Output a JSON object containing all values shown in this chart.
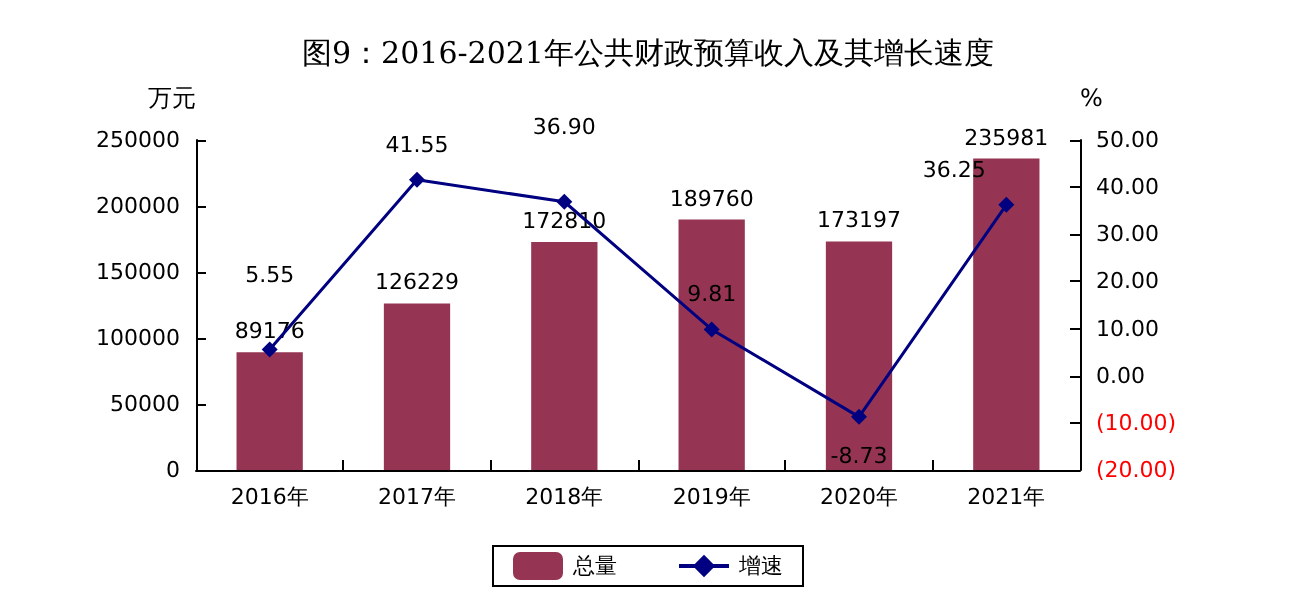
{
  "chart_data": {
    "type": "bar",
    "title": "图9：2016-2021年公共财政预算收入及其增长速度",
    "ylabel": "万元",
    "y2label": "%",
    "categories": [
      "2016年",
      "2017年",
      "2018年",
      "2019年",
      "2020年",
      "2021年"
    ],
    "series": [
      {
        "name": "总量",
        "color": "#953553",
        "values": [
          89176,
          126229,
          172810,
          189760,
          173197,
          235981
        ]
      },
      {
        "name": "增速",
        "type": "line",
        "axis": "y2",
        "color": "#000080",
        "values": [
          5.55,
          41.55,
          36.9,
          9.81,
          -8.73,
          36.25
        ],
        "value_labels": [
          "5.55",
          "41.55",
          "36.90",
          "9.81",
          "-8.73",
          "36.25"
        ]
      }
    ],
    "ylim": [
      0,
      250000
    ],
    "yticks": [
      0,
      50000,
      100000,
      150000,
      200000,
      250000
    ],
    "y2lim": [
      -20,
      50
    ],
    "y2ticks": [
      {
        "value": -20,
        "label": "(20.00)"
      },
      {
        "value": -10,
        "label": "(10.00)"
      },
      {
        "value": 0,
        "label": "0.00"
      },
      {
        "value": 10,
        "label": "10.00"
      },
      {
        "value": 20,
        "label": "20.00"
      },
      {
        "value": 30,
        "label": "30.00"
      },
      {
        "value": 40,
        "label": "40.00"
      },
      {
        "value": 50,
        "label": "50.00"
      }
    ],
    "data_labels": true,
    "legend": "bottom",
    "marker": "diamond",
    "grid": false
  }
}
